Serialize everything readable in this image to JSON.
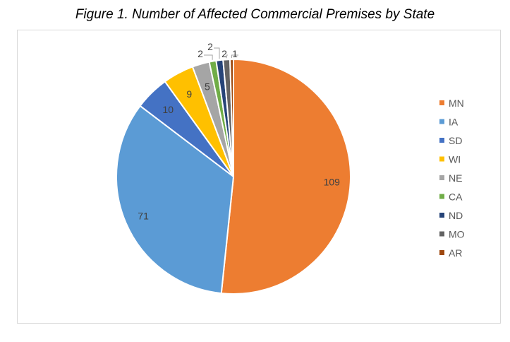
{
  "chart_data": {
    "type": "pie",
    "title": "Figure 1. Number of Affected Commercial Premises by State",
    "categories": [
      "MN",
      "IA",
      "SD",
      "WI",
      "NE",
      "CA",
      "ND",
      "MO",
      "AR"
    ],
    "values": [
      109,
      71,
      10,
      9,
      5,
      2,
      2,
      2,
      1
    ],
    "colors": [
      "#ED7D31",
      "#5B9BD5",
      "#4472C4",
      "#FFC000",
      "#A5A5A5",
      "#70AD47",
      "#264478",
      "#636363",
      "#9E480E"
    ],
    "legend_position": "right",
    "data_labels": true
  }
}
